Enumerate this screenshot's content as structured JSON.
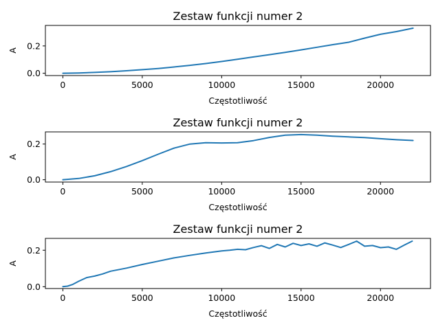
{
  "chart_data": [
    {
      "type": "line",
      "title": "Zestaw funkcji numer 2",
      "xlabel": "Częstotliwość",
      "ylabel": "A",
      "xlim": [
        -1100,
        23150
      ],
      "ylim": [
        -0.017,
        0.35
      ],
      "xticks": [
        0,
        5000,
        10000,
        15000,
        20000
      ],
      "xtick_labels": [
        "0",
        "5000",
        "10000",
        "15000",
        "20000"
      ],
      "yticks": [
        0.0,
        0.2
      ],
      "ytick_labels": [
        "0.0",
        "0.2"
      ],
      "grid": false,
      "series_color": "#1f77b4",
      "x": [
        0,
        1000,
        2000,
        3000,
        4000,
        5000,
        6000,
        7000,
        8000,
        9000,
        10000,
        11000,
        12000,
        13000,
        14000,
        15000,
        16000,
        17000,
        18000,
        19000,
        20000,
        21000,
        22050
      ],
      "y": [
        0.0,
        0.002,
        0.006,
        0.011,
        0.018,
        0.026,
        0.035,
        0.046,
        0.058,
        0.071,
        0.086,
        0.102,
        0.119,
        0.136,
        0.153,
        0.171,
        0.19,
        0.209,
        0.227,
        0.257,
        0.285,
        0.305,
        0.33
      ]
    },
    {
      "type": "line",
      "title": "Zestaw funkcji numer 2",
      "xlabel": "Częstotliwość",
      "ylabel": "A",
      "xlim": [
        -1100,
        23150
      ],
      "ylim": [
        -0.013,
        0.268
      ],
      "xticks": [
        0,
        5000,
        10000,
        15000,
        20000
      ],
      "xtick_labels": [
        "0",
        "5000",
        "10000",
        "15000",
        "20000"
      ],
      "yticks": [
        0.0,
        0.2
      ],
      "ytick_labels": [
        "0.0",
        "0.2"
      ],
      "grid": false,
      "series_color": "#1f77b4",
      "x": [
        0,
        1000,
        2000,
        3000,
        4000,
        5000,
        6000,
        7000,
        8000,
        9000,
        10000,
        11000,
        12000,
        13000,
        14000,
        15000,
        16000,
        17000,
        18000,
        19000,
        20000,
        21000,
        22050
      ],
      "y": [
        0.0,
        0.007,
        0.022,
        0.045,
        0.074,
        0.107,
        0.143,
        0.177,
        0.2,
        0.207,
        0.206,
        0.207,
        0.219,
        0.237,
        0.25,
        0.253,
        0.25,
        0.244,
        0.24,
        0.236,
        0.23,
        0.224,
        0.22
      ]
    },
    {
      "type": "line",
      "title": "Zestaw funkcji numer 2",
      "xlabel": "Częstotliwość",
      "ylabel": "A",
      "xlim": [
        -1100,
        23150
      ],
      "ylim": [
        -0.01,
        0.265
      ],
      "xticks": [
        0,
        5000,
        10000,
        15000,
        20000
      ],
      "xtick_labels": [
        "0",
        "5000",
        "10000",
        "15000",
        "20000"
      ],
      "yticks": [
        0.0,
        0.2
      ],
      "ytick_labels": [
        "0.0",
        "0.2"
      ],
      "grid": false,
      "series_color": "#1f77b4",
      "x": [
        0,
        300,
        600,
        1000,
        1500,
        2000,
        2500,
        3000,
        4000,
        5000,
        6000,
        7000,
        8000,
        9000,
        10000,
        10500,
        11000,
        11500,
        12000,
        12500,
        13000,
        13500,
        14000,
        14500,
        15000,
        15500,
        16000,
        16500,
        17000,
        17500,
        18000,
        18500,
        19000,
        19500,
        20000,
        20500,
        21000,
        21500,
        22000
      ],
      "y": [
        0.0,
        0.003,
        0.012,
        0.03,
        0.05,
        0.058,
        0.07,
        0.085,
        0.102,
        0.122,
        0.14,
        0.158,
        0.172,
        0.185,
        0.196,
        0.2,
        0.205,
        0.203,
        0.215,
        0.225,
        0.21,
        0.232,
        0.218,
        0.238,
        0.226,
        0.235,
        0.222,
        0.24,
        0.228,
        0.215,
        0.232,
        0.25,
        0.222,
        0.226,
        0.214,
        0.218,
        0.205,
        0.228,
        0.25
      ]
    }
  ]
}
